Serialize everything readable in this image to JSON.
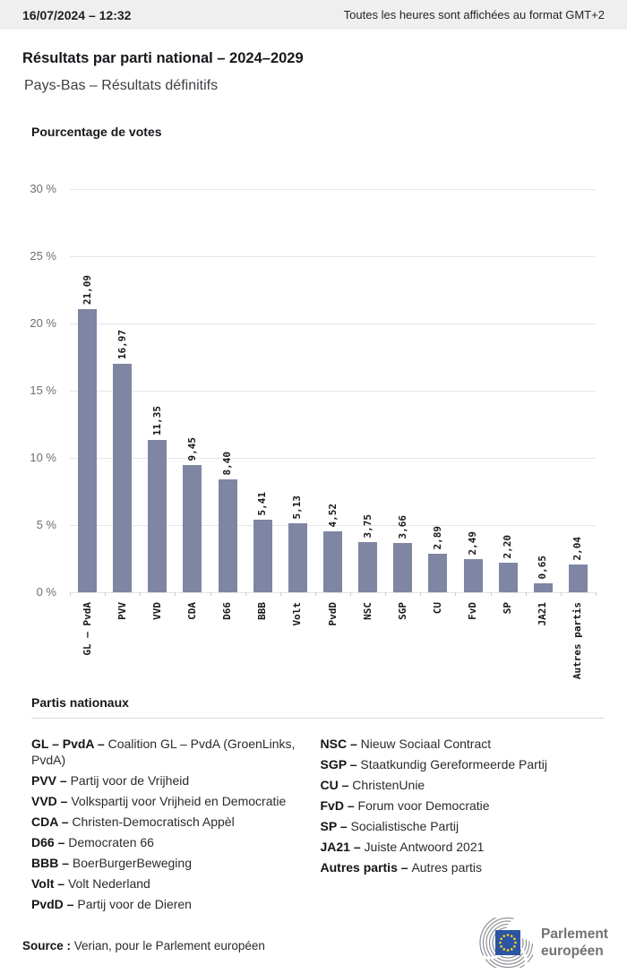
{
  "header": {
    "datetime": "16/07/2024 – 12:32",
    "timezone_note": "Toutes les heures sont affichées au format GMT+2"
  },
  "title": "Résultats par parti national – 2024–2029",
  "subtitle": "Pays-Bas – Résultats définitifs",
  "chart_data": {
    "type": "bar",
    "title": "Pourcentage de votes",
    "categories": [
      "GL – PvdA",
      "PVV",
      "VVD",
      "CDA",
      "D66",
      "BBB",
      "Volt",
      "PvdD",
      "NSC",
      "SGP",
      "CU",
      "FvD",
      "SP",
      "JA21",
      "Autres partis"
    ],
    "values": [
      21.09,
      16.97,
      11.35,
      9.45,
      8.4,
      5.41,
      5.13,
      4.52,
      3.75,
      3.66,
      2.89,
      2.49,
      2.2,
      0.65,
      2.04
    ],
    "value_labels": [
      "21,09",
      "16,97",
      "11,35",
      "9,45",
      "8,40",
      "5,41",
      "5,13",
      "4,52",
      "3,75",
      "3,66",
      "2,89",
      "2,49",
      "2,20",
      "0,65",
      "2,04"
    ],
    "xlabel": "",
    "ylabel": "Pourcentage de votes",
    "ylim": [
      0,
      30
    ],
    "yticks": [
      0,
      5,
      10,
      15,
      20,
      25,
      30
    ],
    "ytick_labels": [
      "0 %",
      "5 %",
      "10 %",
      "15 %",
      "20 %",
      "25 %",
      "30 %"
    ],
    "grid": true,
    "legend_position": "none",
    "bar_color": "#7e86a3"
  },
  "legend": {
    "heading": "Partis nationaux",
    "columns": [
      [
        {
          "abbr": "GL – PvdA",
          "name": "Coalition GL – PvdA (GroenLinks, PvdA)"
        },
        {
          "abbr": "PVV",
          "name": "Partij voor de Vrijheid"
        },
        {
          "abbr": "VVD",
          "name": "Volkspartij voor Vrijheid en Democratie"
        },
        {
          "abbr": "CDA",
          "name": "Christen-Democratisch Appèl"
        },
        {
          "abbr": "D66",
          "name": "Democraten 66"
        },
        {
          "abbr": "BBB",
          "name": "BoerBurgerBeweging"
        },
        {
          "abbr": "Volt",
          "name": "Volt Nederland"
        },
        {
          "abbr": "PvdD",
          "name": "Partij voor de Dieren"
        }
      ],
      [
        {
          "abbr": "NSC",
          "name": "Nieuw Sociaal Contract"
        },
        {
          "abbr": "SGP",
          "name": "Staatkundig Gereformeerde Partij"
        },
        {
          "abbr": "CU",
          "name": "ChristenUnie"
        },
        {
          "abbr": "FvD",
          "name": "Forum voor Democratie"
        },
        {
          "abbr": "SP",
          "name": "Socialistische Partij"
        },
        {
          "abbr": "JA21",
          "name": "Juiste Antwoord 2021"
        },
        {
          "abbr": "Autres partis",
          "name": "Autres partis"
        }
      ]
    ]
  },
  "source": {
    "label": "Source :",
    "text": "Verian, pour le Parlement européen"
  },
  "logo": {
    "icon": "ep-hemicycle-icon",
    "line1": "Parlement",
    "line2": "européen",
    "flag_color": "#2b55a2",
    "star_color": "#ffd617",
    "arc_color": "#8e9196"
  },
  "colors": {
    "header_bg": "#efefef",
    "gridline": "#e5e5e8",
    "bar": "#7e86a3"
  }
}
